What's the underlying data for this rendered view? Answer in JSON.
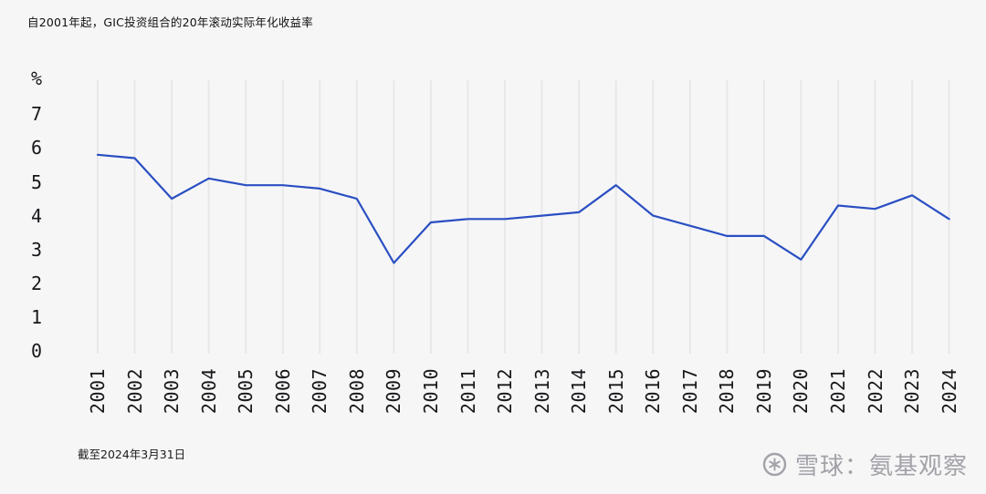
{
  "header": {
    "title": "自2001年起，GIC投资组合的20年滚动实际年化收益率"
  },
  "footer": {
    "note": "截至2024年3月31日"
  },
  "watermark": {
    "text": "雪球：氨基观察",
    "icon": "xueqiu-logo"
  },
  "chart_data": {
    "type": "line",
    "title": "自2001年起，GIC投资组合的20年滚动实际年化收益率",
    "x": [
      2001,
      2002,
      2003,
      2004,
      2005,
      2006,
      2007,
      2008,
      2009,
      2010,
      2011,
      2012,
      2013,
      2014,
      2015,
      2016,
      2017,
      2018,
      2019,
      2020,
      2021,
      2022,
      2023,
      2024
    ],
    "values": [
      5.8,
      5.7,
      4.5,
      5.1,
      4.9,
      4.9,
      4.8,
      4.5,
      2.6,
      3.8,
      3.9,
      3.9,
      4.0,
      4.1,
      4.9,
      4.0,
      3.7,
      3.4,
      3.4,
      2.7,
      4.3,
      4.2,
      4.6,
      3.9
    ],
    "unit_label": "%",
    "yticks": [
      7,
      6,
      5,
      4,
      3,
      2,
      1,
      0
    ],
    "ylim": [
      0,
      7
    ],
    "xlabel": "",
    "ylabel": "%",
    "grid": "vertical-only",
    "legend": "",
    "line_color": "#2a4fc2",
    "grid_color": "#e8e8ea",
    "background_color": "#f6f6f7"
  }
}
